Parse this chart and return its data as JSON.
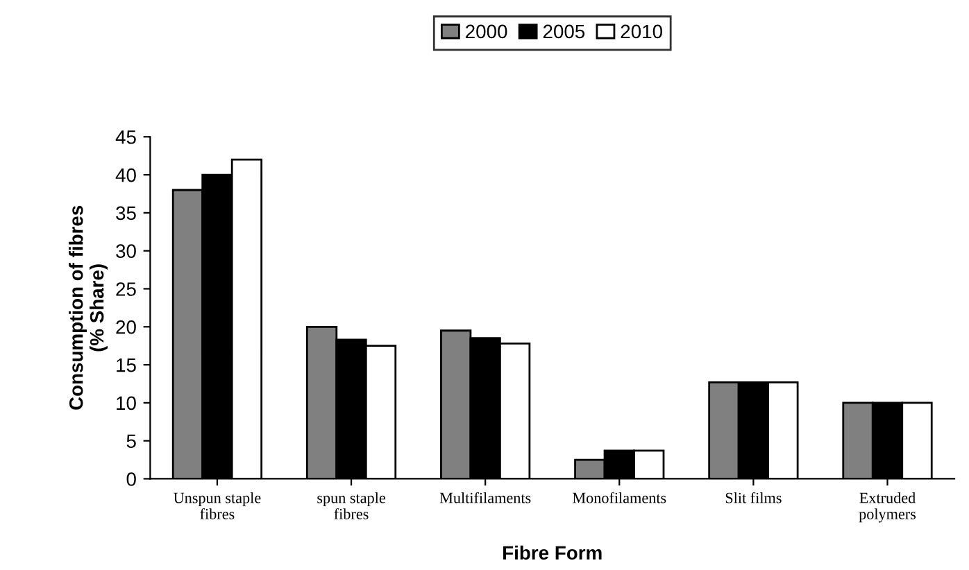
{
  "chart_data": {
    "type": "bar",
    "xlabel": "Fibre Form",
    "ylabel": "Consumption of fibres\n(% Share)",
    "categories": [
      "Unspun staple\nfibres",
      "spun staple\nfibres",
      "Multifilaments",
      "Monofilaments",
      "Slit films",
      "Extruded\npolymers"
    ],
    "series": [
      {
        "name": "2000",
        "color": "#808080",
        "values": [
          38,
          20,
          19.5,
          2.5,
          12.7,
          10
        ]
      },
      {
        "name": "2005",
        "color": "#000000",
        "values": [
          40,
          18.3,
          18.5,
          3.7,
          12.7,
          10
        ]
      },
      {
        "name": "2010",
        "color": "#ffffff",
        "values": [
          42,
          17.5,
          17.8,
          3.7,
          12.7,
          10
        ]
      }
    ],
    "ylim": [
      0,
      45
    ],
    "yticks": [
      0,
      5,
      10,
      15,
      20,
      25,
      30,
      35,
      40,
      45
    ],
    "grid": false,
    "legend": "top"
  }
}
